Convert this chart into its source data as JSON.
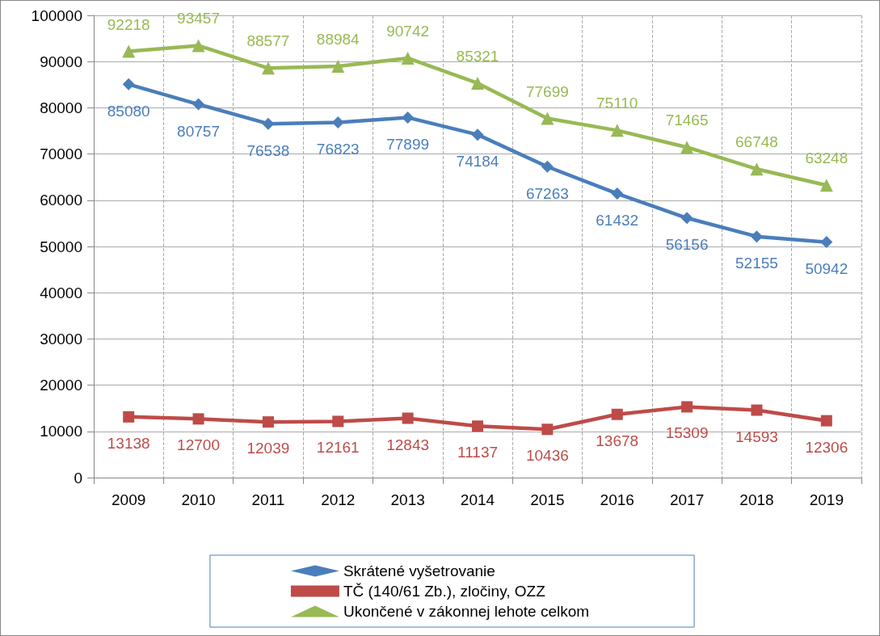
{
  "chart_data": {
    "type": "line",
    "categories": [
      "2009",
      "2010",
      "2011",
      "2012",
      "2013",
      "2014",
      "2015",
      "2016",
      "2017",
      "2018",
      "2019"
    ],
    "series": [
      {
        "name": "Skrátené vyšetrovanie",
        "color": "#4a7ebb",
        "marker": "diamond",
        "values": [
          85080,
          80757,
          76538,
          76823,
          77899,
          74184,
          67263,
          61432,
          56156,
          52155,
          50942
        ]
      },
      {
        "name": "TČ (140/61 Zb.), zločiny, OZZ",
        "color": "#be4b48",
        "marker": "square",
        "values": [
          13138,
          12700,
          12039,
          12161,
          12843,
          11137,
          10436,
          13678,
          15309,
          14593,
          12306
        ]
      },
      {
        "name": "Ukončené v zákonnej lehote celkom",
        "color": "#98b954",
        "marker": "triangle",
        "values": [
          92218,
          93457,
          88577,
          88984,
          90742,
          85321,
          77699,
          75110,
          71465,
          66748,
          63248
        ]
      }
    ],
    "ylim": [
      0,
      100000
    ],
    "yticks": [
      0,
      10000,
      20000,
      30000,
      40000,
      50000,
      60000,
      70000,
      80000,
      90000,
      100000
    ],
    "grid": true,
    "legend": "bottom",
    "data_labels": true,
    "line_style": "solid"
  }
}
